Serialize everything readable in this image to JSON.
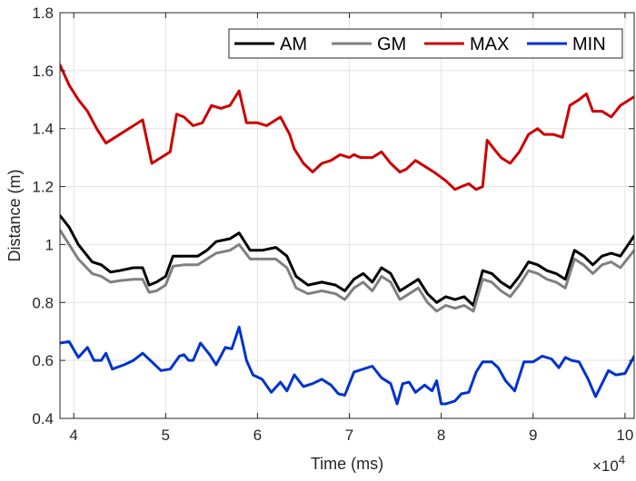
{
  "chart_data": {
    "type": "line",
    "title": "",
    "xlabel": "Time (ms)",
    "ylabel": "Distance (m)",
    "x_exponent_label": "×10",
    "x_exponent_power": "4",
    "xlim": [
      3.85,
      10.1
    ],
    "ylim": [
      0.4,
      1.8
    ],
    "x_ticks": [
      4,
      5,
      6,
      7,
      8,
      9,
      10
    ],
    "y_ticks": [
      0.4,
      0.6,
      0.8,
      1,
      1.2,
      1.4,
      1.6,
      1.8
    ],
    "x_tick_labels": [
      "4",
      "5",
      "6",
      "7",
      "8",
      "9",
      "10"
    ],
    "y_tick_labels": [
      "0.4",
      "0.6",
      "0.8",
      "1",
      "1.2",
      "1.4",
      "1.6",
      "1.8"
    ],
    "grid": true,
    "legend_position": "top-right",
    "series": [
      {
        "name": "AM",
        "color": "#000000",
        "points": [
          [
            3.85,
            1.1
          ],
          [
            3.95,
            1.06
          ],
          [
            4.05,
            1.0
          ],
          [
            4.2,
            0.94
          ],
          [
            4.3,
            0.93
          ],
          [
            4.4,
            0.905
          ],
          [
            4.5,
            0.91
          ],
          [
            4.65,
            0.92
          ],
          [
            4.75,
            0.92
          ],
          [
            4.82,
            0.86
          ],
          [
            4.9,
            0.87
          ],
          [
            5.0,
            0.89
          ],
          [
            5.08,
            0.96
          ],
          [
            5.2,
            0.96
          ],
          [
            5.35,
            0.96
          ],
          [
            5.45,
            0.98
          ],
          [
            5.55,
            1.01
          ],
          [
            5.7,
            1.02
          ],
          [
            5.8,
            1.04
          ],
          [
            5.92,
            0.98
          ],
          [
            6.05,
            0.98
          ],
          [
            6.2,
            0.99
          ],
          [
            6.32,
            0.96
          ],
          [
            6.42,
            0.89
          ],
          [
            6.55,
            0.86
          ],
          [
            6.7,
            0.87
          ],
          [
            6.85,
            0.86
          ],
          [
            6.95,
            0.84
          ],
          [
            7.05,
            0.88
          ],
          [
            7.15,
            0.9
          ],
          [
            7.25,
            0.87
          ],
          [
            7.35,
            0.92
          ],
          [
            7.45,
            0.9
          ],
          [
            7.55,
            0.84
          ],
          [
            7.65,
            0.86
          ],
          [
            7.75,
            0.88
          ],
          [
            7.85,
            0.83
          ],
          [
            7.95,
            0.8
          ],
          [
            8.05,
            0.82
          ],
          [
            8.15,
            0.81
          ],
          [
            8.25,
            0.82
          ],
          [
            8.35,
            0.79
          ],
          [
            8.45,
            0.91
          ],
          [
            8.55,
            0.9
          ],
          [
            8.65,
            0.87
          ],
          [
            8.75,
            0.85
          ],
          [
            8.85,
            0.89
          ],
          [
            8.95,
            0.94
          ],
          [
            9.05,
            0.93
          ],
          [
            9.15,
            0.91
          ],
          [
            9.25,
            0.9
          ],
          [
            9.35,
            0.88
          ],
          [
            9.45,
            0.98
          ],
          [
            9.55,
            0.96
          ],
          [
            9.65,
            0.93
          ],
          [
            9.75,
            0.96
          ],
          [
            9.85,
            0.97
          ],
          [
            9.95,
            0.96
          ],
          [
            10.1,
            1.03
          ]
        ]
      },
      {
        "name": "GM",
        "color": "#808080",
        "points": [
          [
            3.85,
            1.05
          ],
          [
            3.95,
            1.0
          ],
          [
            4.05,
            0.95
          ],
          [
            4.2,
            0.9
          ],
          [
            4.3,
            0.89
          ],
          [
            4.4,
            0.87
          ],
          [
            4.5,
            0.875
          ],
          [
            4.65,
            0.88
          ],
          [
            4.75,
            0.88
          ],
          [
            4.82,
            0.835
          ],
          [
            4.9,
            0.84
          ],
          [
            5.0,
            0.86
          ],
          [
            5.08,
            0.925
          ],
          [
            5.2,
            0.93
          ],
          [
            5.35,
            0.93
          ],
          [
            5.45,
            0.95
          ],
          [
            5.55,
            0.97
          ],
          [
            5.7,
            0.98
          ],
          [
            5.8,
            1.0
          ],
          [
            5.92,
            0.95
          ],
          [
            6.05,
            0.95
          ],
          [
            6.2,
            0.95
          ],
          [
            6.32,
            0.92
          ],
          [
            6.42,
            0.85
          ],
          [
            6.55,
            0.83
          ],
          [
            6.7,
            0.84
          ],
          [
            6.85,
            0.83
          ],
          [
            6.95,
            0.81
          ],
          [
            7.05,
            0.85
          ],
          [
            7.15,
            0.87
          ],
          [
            7.25,
            0.84
          ],
          [
            7.35,
            0.89
          ],
          [
            7.45,
            0.87
          ],
          [
            7.55,
            0.81
          ],
          [
            7.65,
            0.83
          ],
          [
            7.75,
            0.85
          ],
          [
            7.85,
            0.8
          ],
          [
            7.95,
            0.77
          ],
          [
            8.05,
            0.79
          ],
          [
            8.15,
            0.78
          ],
          [
            8.25,
            0.79
          ],
          [
            8.35,
            0.77
          ],
          [
            8.45,
            0.88
          ],
          [
            8.55,
            0.87
          ],
          [
            8.65,
            0.84
          ],
          [
            8.75,
            0.82
          ],
          [
            8.85,
            0.86
          ],
          [
            8.95,
            0.91
          ],
          [
            9.05,
            0.9
          ],
          [
            9.15,
            0.88
          ],
          [
            9.25,
            0.87
          ],
          [
            9.35,
            0.85
          ],
          [
            9.45,
            0.95
          ],
          [
            9.55,
            0.93
          ],
          [
            9.65,
            0.9
          ],
          [
            9.75,
            0.93
          ],
          [
            9.85,
            0.94
          ],
          [
            9.95,
            0.92
          ],
          [
            10.1,
            0.98
          ]
        ]
      },
      {
        "name": "MAX",
        "color": "#cc0000",
        "points": [
          [
            3.85,
            1.62
          ],
          [
            3.95,
            1.55
          ],
          [
            4.05,
            1.5
          ],
          [
            4.15,
            1.46
          ],
          [
            4.25,
            1.4
          ],
          [
            4.35,
            1.35
          ],
          [
            4.45,
            1.37
          ],
          [
            4.55,
            1.39
          ],
          [
            4.75,
            1.43
          ],
          [
            4.85,
            1.28
          ],
          [
            4.95,
            1.3
          ],
          [
            5.05,
            1.32
          ],
          [
            5.12,
            1.45
          ],
          [
            5.2,
            1.44
          ],
          [
            5.3,
            1.41
          ],
          [
            5.4,
            1.42
          ],
          [
            5.5,
            1.48
          ],
          [
            5.6,
            1.47
          ],
          [
            5.7,
            1.48
          ],
          [
            5.8,
            1.53
          ],
          [
            5.88,
            1.42
          ],
          [
            6.0,
            1.42
          ],
          [
            6.1,
            1.41
          ],
          [
            6.2,
            1.43
          ],
          [
            6.25,
            1.44
          ],
          [
            6.35,
            1.38
          ],
          [
            6.4,
            1.33
          ],
          [
            6.5,
            1.28
          ],
          [
            6.6,
            1.25
          ],
          [
            6.7,
            1.28
          ],
          [
            6.8,
            1.29
          ],
          [
            6.9,
            1.31
          ],
          [
            7.0,
            1.3
          ],
          [
            7.05,
            1.31
          ],
          [
            7.12,
            1.3
          ],
          [
            7.25,
            1.3
          ],
          [
            7.35,
            1.32
          ],
          [
            7.45,
            1.28
          ],
          [
            7.55,
            1.25
          ],
          [
            7.62,
            1.26
          ],
          [
            7.72,
            1.29
          ],
          [
            7.82,
            1.27
          ],
          [
            7.92,
            1.25
          ],
          [
            8.05,
            1.22
          ],
          [
            8.15,
            1.19
          ],
          [
            8.22,
            1.2
          ],
          [
            8.3,
            1.21
          ],
          [
            8.38,
            1.19
          ],
          [
            8.45,
            1.2
          ],
          [
            8.5,
            1.36
          ],
          [
            8.6,
            1.32
          ],
          [
            8.65,
            1.3
          ],
          [
            8.75,
            1.28
          ],
          [
            8.85,
            1.32
          ],
          [
            8.95,
            1.38
          ],
          [
            9.05,
            1.4
          ],
          [
            9.12,
            1.38
          ],
          [
            9.22,
            1.38
          ],
          [
            9.32,
            1.37
          ],
          [
            9.4,
            1.48
          ],
          [
            9.5,
            1.5
          ],
          [
            9.58,
            1.52
          ],
          [
            9.65,
            1.46
          ],
          [
            9.75,
            1.46
          ],
          [
            9.85,
            1.44
          ],
          [
            9.95,
            1.48
          ],
          [
            10.1,
            1.51
          ]
        ]
      },
      {
        "name": "MIN",
        "color": "#0033cc",
        "points": [
          [
            3.85,
            0.66
          ],
          [
            3.95,
            0.665
          ],
          [
            4.05,
            0.61
          ],
          [
            4.15,
            0.645
          ],
          [
            4.22,
            0.6
          ],
          [
            4.3,
            0.6
          ],
          [
            4.35,
            0.625
          ],
          [
            4.42,
            0.57
          ],
          [
            4.55,
            0.585
          ],
          [
            4.65,
            0.6
          ],
          [
            4.75,
            0.625
          ],
          [
            4.85,
            0.595
          ],
          [
            4.95,
            0.565
          ],
          [
            5.05,
            0.57
          ],
          [
            5.15,
            0.615
          ],
          [
            5.2,
            0.62
          ],
          [
            5.25,
            0.6
          ],
          [
            5.3,
            0.6
          ],
          [
            5.38,
            0.66
          ],
          [
            5.48,
            0.62
          ],
          [
            5.55,
            0.585
          ],
          [
            5.65,
            0.645
          ],
          [
            5.72,
            0.64
          ],
          [
            5.8,
            0.715
          ],
          [
            5.88,
            0.6
          ],
          [
            5.95,
            0.55
          ],
          [
            6.05,
            0.535
          ],
          [
            6.15,
            0.49
          ],
          [
            6.25,
            0.525
          ],
          [
            6.32,
            0.495
          ],
          [
            6.4,
            0.55
          ],
          [
            6.5,
            0.51
          ],
          [
            6.6,
            0.52
          ],
          [
            6.7,
            0.535
          ],
          [
            6.8,
            0.515
          ],
          [
            6.88,
            0.485
          ],
          [
            6.95,
            0.48
          ],
          [
            7.05,
            0.56
          ],
          [
            7.15,
            0.57
          ],
          [
            7.25,
            0.58
          ],
          [
            7.35,
            0.54
          ],
          [
            7.45,
            0.52
          ],
          [
            7.52,
            0.45
          ],
          [
            7.58,
            0.52
          ],
          [
            7.65,
            0.525
          ],
          [
            7.72,
            0.49
          ],
          [
            7.82,
            0.515
          ],
          [
            7.9,
            0.495
          ],
          [
            7.95,
            0.53
          ],
          [
            8.0,
            0.45
          ],
          [
            8.05,
            0.45
          ],
          [
            8.15,
            0.46
          ],
          [
            8.22,
            0.485
          ],
          [
            8.3,
            0.49
          ],
          [
            8.38,
            0.56
          ],
          [
            8.45,
            0.595
          ],
          [
            8.55,
            0.595
          ],
          [
            8.62,
            0.575
          ],
          [
            8.7,
            0.53
          ],
          [
            8.8,
            0.495
          ],
          [
            8.9,
            0.595
          ],
          [
            9.0,
            0.595
          ],
          [
            9.1,
            0.615
          ],
          [
            9.2,
            0.605
          ],
          [
            9.28,
            0.575
          ],
          [
            9.35,
            0.61
          ],
          [
            9.42,
            0.6
          ],
          [
            9.5,
            0.595
          ],
          [
            9.6,
            0.535
          ],
          [
            9.68,
            0.475
          ],
          [
            9.75,
            0.52
          ],
          [
            9.82,
            0.565
          ],
          [
            9.9,
            0.55
          ],
          [
            10.0,
            0.555
          ],
          [
            10.1,
            0.615
          ]
        ]
      }
    ]
  }
}
